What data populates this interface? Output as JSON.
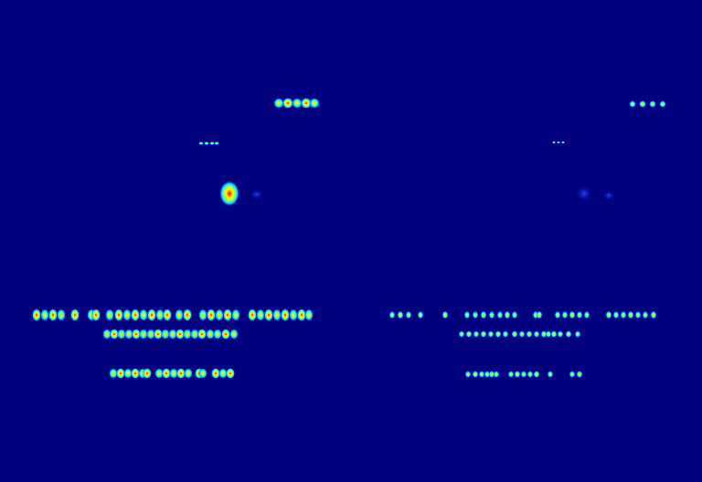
{
  "colors": {
    "background": "#00007f",
    "low": "#0000ff",
    "mid_low": "#00c8ff",
    "mid": "#7fff7f",
    "mid_high": "#ffff00",
    "high": "#ff0000"
  },
  "panels": [
    {
      "id": "left",
      "description_name": "heatmap-panel-left"
    },
    {
      "id": "right",
      "description_name": "heatmap-panel-right"
    }
  ]
}
